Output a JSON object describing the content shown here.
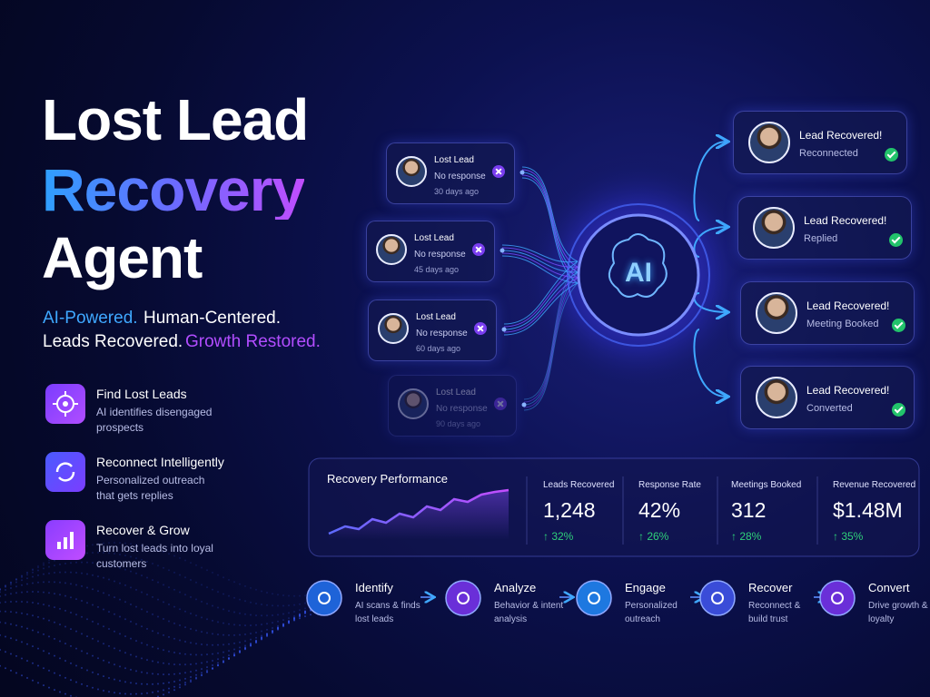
{
  "header": {
    "title_line1": "Lost Lead",
    "title_line2": "Recovery",
    "title_line3": "Agent"
  },
  "tagline": {
    "part1": "AI-Powered.",
    "part2": "Human-Centered.",
    "part3": "Leads Recovered.",
    "part4": "Growth Restored."
  },
  "features": [
    {
      "title": "Find Lost Leads",
      "description": "AI identifies disengaged prospects"
    },
    {
      "title": "Reconnect Intelligently",
      "description": "Personalized outreach that gets replies"
    },
    {
      "title": "Recover & Grow",
      "description": "Turn lost leads into loyal customers"
    }
  ],
  "lost_leads": [
    {
      "title": "Lost Lead",
      "status": "No response",
      "age": "30 days ago"
    },
    {
      "title": "Lost Lead",
      "status": "No response",
      "age": "45 days ago"
    },
    {
      "title": "Lost Lead",
      "status": "No response",
      "age": "60 days ago"
    },
    {
      "title": "Lost Lead",
      "status": "No response",
      "age": "90 days ago"
    }
  ],
  "ai_label": "AI",
  "recovered": [
    {
      "title": "Lead Recovered!",
      "status": "Reconnected"
    },
    {
      "title": "Lead Recovered!",
      "status": "Replied"
    },
    {
      "title": "Lead Recovered!",
      "status": "Meeting Booked"
    },
    {
      "title": "Lead Recovered!",
      "status": "Converted"
    }
  ],
  "performance": {
    "title": "Recovery Performance",
    "metrics": [
      {
        "label": "Leads Recovered",
        "value": "1,248",
        "change": "↑ 32%"
      },
      {
        "label": "Response Rate",
        "value": "42%",
        "change": "↑ 26%"
      },
      {
        "label": "Meetings Booked",
        "value": "312",
        "change": "↑ 28%"
      },
      {
        "label": "Revenue Recovered",
        "value": "$1.48M",
        "change": "↑ 35%"
      }
    ]
  },
  "process": [
    {
      "title": "Identify",
      "description": "AI scans & finds lost leads"
    },
    {
      "title": "Analyze",
      "description": "Behavior & intent analysis"
    },
    {
      "title": "Engage",
      "description": "Personalized outreach"
    },
    {
      "title": "Recover",
      "description": "Reconnect & build trust"
    },
    {
      "title": "Convert",
      "description": "Drive growth & loyalty"
    }
  ]
}
